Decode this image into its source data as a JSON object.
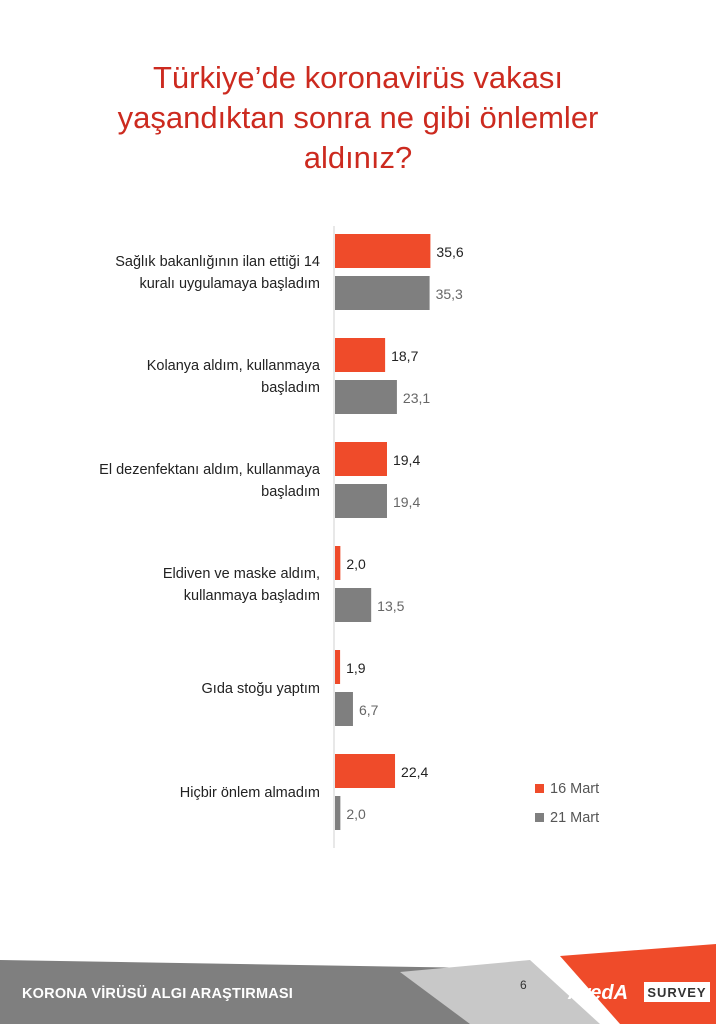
{
  "title_lines": [
    "Türkiye’de  koronavirüs vakası",
    "yaşandıktan sonra ne gibi önlemler",
    "aldınız?"
  ],
  "colors": {
    "title": "#cc2a1f",
    "series1": "#ef4b2a",
    "series2": "#7f7f7f",
    "footer_bar": "#7f7f7f"
  },
  "chart_data": {
    "type": "bar",
    "orientation": "horizontal",
    "categories": [
      [
        "Sağlık bakanlığının ilan ettiği 14",
        "kuralı uygulamaya başladım"
      ],
      [
        "Kolanya aldım, kullanmaya",
        "başladım"
      ],
      [
        "El dezenfektanı aldım, kullanmaya",
        "başladım"
      ],
      [
        "Eldiven ve maske aldım,",
        "kullanmaya başladım"
      ],
      [
        "Gıda stoğu yaptım"
      ],
      [
        "Hiçbir önlem almadım"
      ]
    ],
    "series": [
      {
        "name": "16 Mart",
        "values": [
          35.6,
          18.7,
          19.4,
          2.0,
          1.9,
          22.4
        ],
        "labels": [
          "35,6",
          "18,7",
          "19,4",
          "2,0",
          "1,9",
          "22,4"
        ]
      },
      {
        "name": "21 Mart",
        "values": [
          35.3,
          23.1,
          19.4,
          13.5,
          6.7,
          2.0
        ],
        "labels": [
          "35,3",
          "23,1",
          "19,4",
          "13,5",
          "6,7",
          "2,0"
        ]
      }
    ],
    "legend_position": "bottom-right",
    "grid": false
  },
  "footer": {
    "title": "KORONA VİRÜSÜ ALGI ARAŞTIRMASI",
    "page_number": "6",
    "logo_brand": "AredA",
    "logo_survey": "SURVEY"
  }
}
